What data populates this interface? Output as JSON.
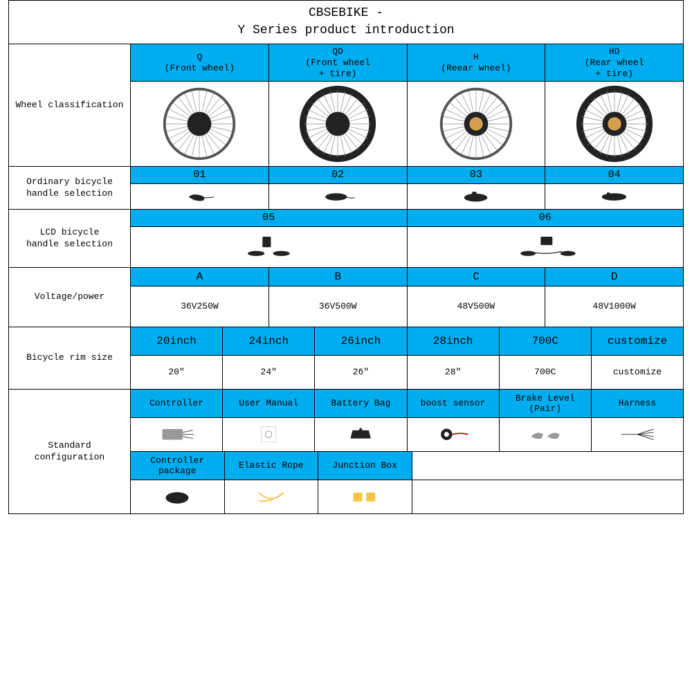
{
  "colors": {
    "blue": "#00aeef",
    "border": "#000000",
    "bg": "#ffffff"
  },
  "title": {
    "line1": "CBSEBIKE -",
    "line2": "Y   Series product introduction"
  },
  "rows": {
    "wheel": {
      "label": "Wheel classification",
      "headers": [
        {
          "code": "Q",
          "sub": "(Front wheel)"
        },
        {
          "code": "QD",
          "sub": "(Front wheel\n+ tire)"
        },
        {
          "code": "H",
          "sub": "(Reear wheel)"
        },
        {
          "code": "HD",
          "sub": "(Rear wheel\n+ tire)"
        }
      ]
    },
    "handle": {
      "label": "Ordinary bicycle\nhandle selection",
      "codes": [
        "01",
        "02",
        "03",
        "04"
      ]
    },
    "lcd": {
      "label": "LCD bicycle\nhandle selection",
      "codes": [
        "05",
        "06"
      ]
    },
    "voltage": {
      "label": "Voltage/power",
      "codes": [
        "A",
        "B",
        "C",
        "D"
      ],
      "values": [
        "36V250W",
        "36V500W",
        "48V500W",
        "48V1000W"
      ]
    },
    "rim": {
      "label": "Bicycle rim size",
      "headers": [
        "20inch",
        "24inch",
        "26inch",
        "28inch",
        "700C",
        "customize"
      ],
      "values": [
        "20″",
        "24″",
        "26″",
        "28″",
        "700C",
        "customize"
      ]
    },
    "config": {
      "label": "Standard\nconfiguration",
      "row1": [
        "Controller",
        "User Manual",
        "Battery Bag",
        "boost sensor",
        "Brake Level\n(Pair)",
        "Harness"
      ],
      "row2": [
        "Controller\npackage",
        "Elastic Rope",
        "Junction Box"
      ]
    }
  }
}
